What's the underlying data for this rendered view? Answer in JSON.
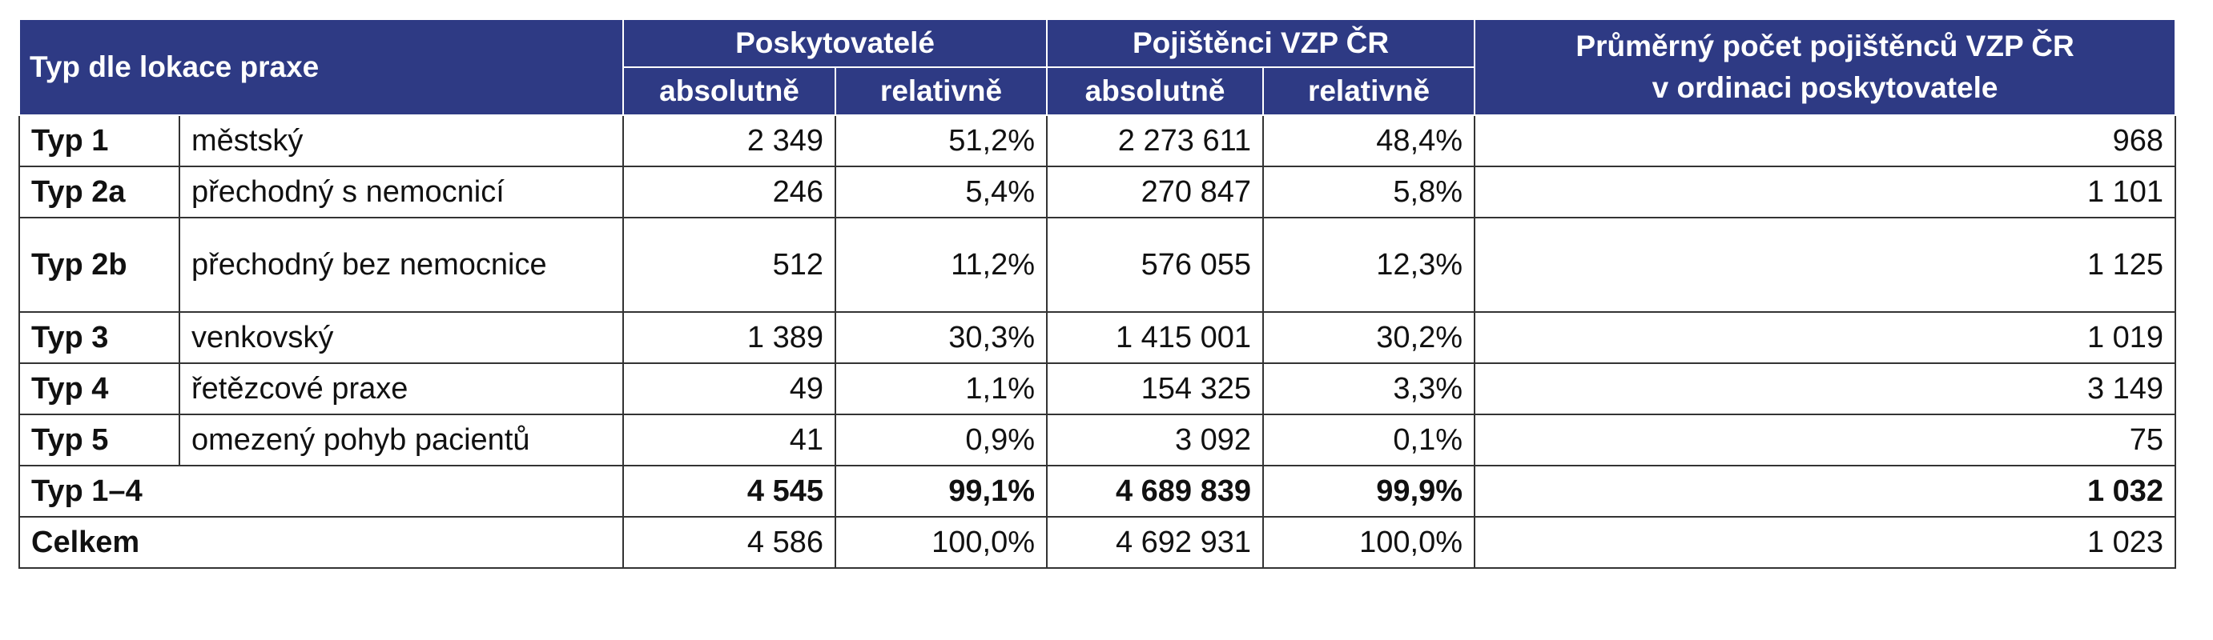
{
  "table": {
    "headers": {
      "type": "Typ dle lokace praxe",
      "providers": "Poskytovatelé",
      "insured": "Pojištěnci VZP ČR",
      "average_line1": "Průměrný počet pojištěnců VZP ČR",
      "average_line2": "v ordinaci poskytovatele",
      "absolute": "absolutně",
      "relative": "relativně"
    },
    "rows": [
      {
        "type": "Typ 1",
        "desc": "městský",
        "prov_abs": "2 349",
        "prov_rel": "51,2%",
        "ins_abs": "2 273 611",
        "ins_rel": "48,4%",
        "avg": "968"
      },
      {
        "type": "Typ 2a",
        "desc": "přechodný s nemocnicí",
        "prov_abs": "246",
        "prov_rel": "5,4%",
        "ins_abs": "270 847",
        "ins_rel": "5,8%",
        "avg": "1 101"
      },
      {
        "type": "Typ 2b",
        "desc": "přechodný bez nemocnice",
        "prov_abs": "512",
        "prov_rel": "11,2%",
        "ins_abs": "576 055",
        "ins_rel": "12,3%",
        "avg": "1 125"
      },
      {
        "type": "Typ 3",
        "desc": "venkovský",
        "prov_abs": "1 389",
        "prov_rel": "30,3%",
        "ins_abs": "1 415 001",
        "ins_rel": "30,2%",
        "avg": "1 019"
      },
      {
        "type": "Typ 4",
        "desc": "řetězcové praxe",
        "prov_abs": "49",
        "prov_rel": "1,1%",
        "ins_abs": "154 325",
        "ins_rel": "3,3%",
        "avg": "3 149"
      },
      {
        "type": "Typ 5",
        "desc": "omezený pohyb pacientů",
        "prov_abs": "41",
        "prov_rel": "0,9%",
        "ins_abs": "3 092",
        "ins_rel": "0,1%",
        "avg": "75"
      }
    ],
    "subtotal": {
      "label": "Typ 1–4",
      "prov_abs": "4 545",
      "prov_rel": "99,1%",
      "ins_abs": "4 689 839",
      "ins_rel": "99,9%",
      "avg": "1 032"
    },
    "total": {
      "label": "Celkem",
      "prov_abs": "4 586",
      "prov_rel": "100,0%",
      "ins_abs": "4 692 931",
      "ins_rel": "100,0%",
      "avg": "1 023"
    }
  },
  "colors": {
    "header_bg": "#2e3a84",
    "header_text": "#ffffff",
    "border": "#333333"
  }
}
